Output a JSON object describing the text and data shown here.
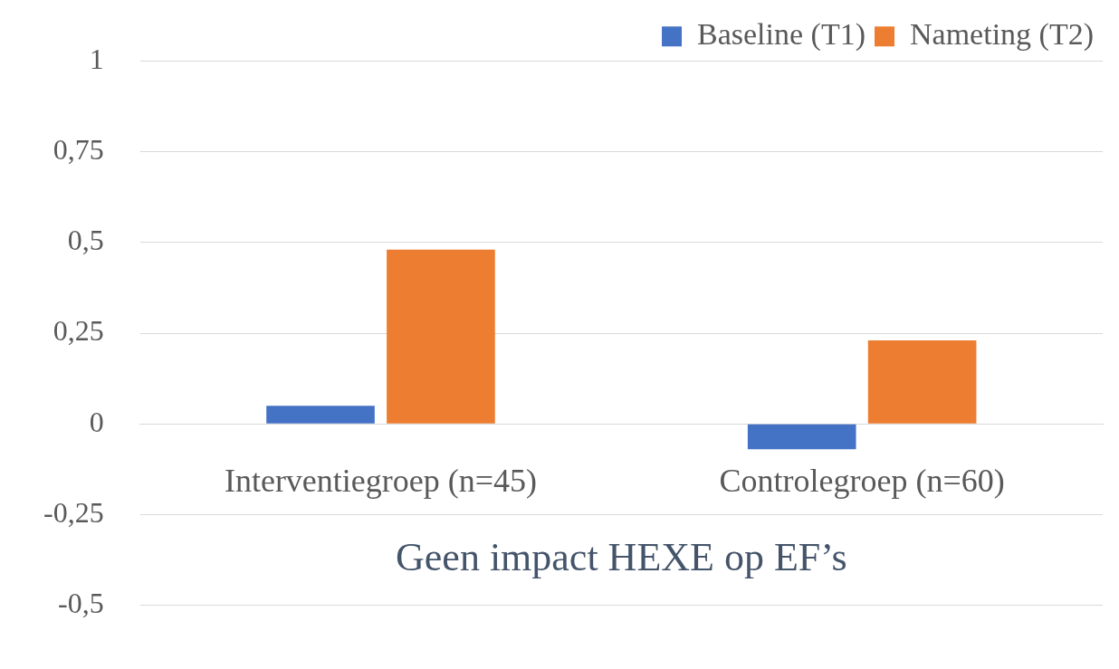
{
  "chart_data": {
    "type": "bar",
    "title": "Geen impact HEXE op EF’s",
    "categories": [
      "Interventiegroep (n=45)",
      "Controlegroep (n=60)"
    ],
    "series": [
      {
        "name": "Baseline (T1)",
        "color": "#4472c4",
        "values": [
          0.05,
          -0.07
        ]
      },
      {
        "name": "Nameting (T2)",
        "color": "#ed7d31",
        "values": [
          0.48,
          0.23
        ]
      }
    ],
    "ylim": [
      -0.5,
      1
    ],
    "yticks": [
      {
        "value": -0.5,
        "label": "-0,5"
      },
      {
        "value": -0.25,
        "label": "-0,25"
      },
      0,
      {
        "value": 0.25,
        "label": "0,25"
      },
      {
        "value": 0.5,
        "label": "0,5"
      },
      {
        "value": 0.75,
        "label": "0,75"
      },
      1
    ],
    "grid": "y",
    "legend": "top right"
  }
}
